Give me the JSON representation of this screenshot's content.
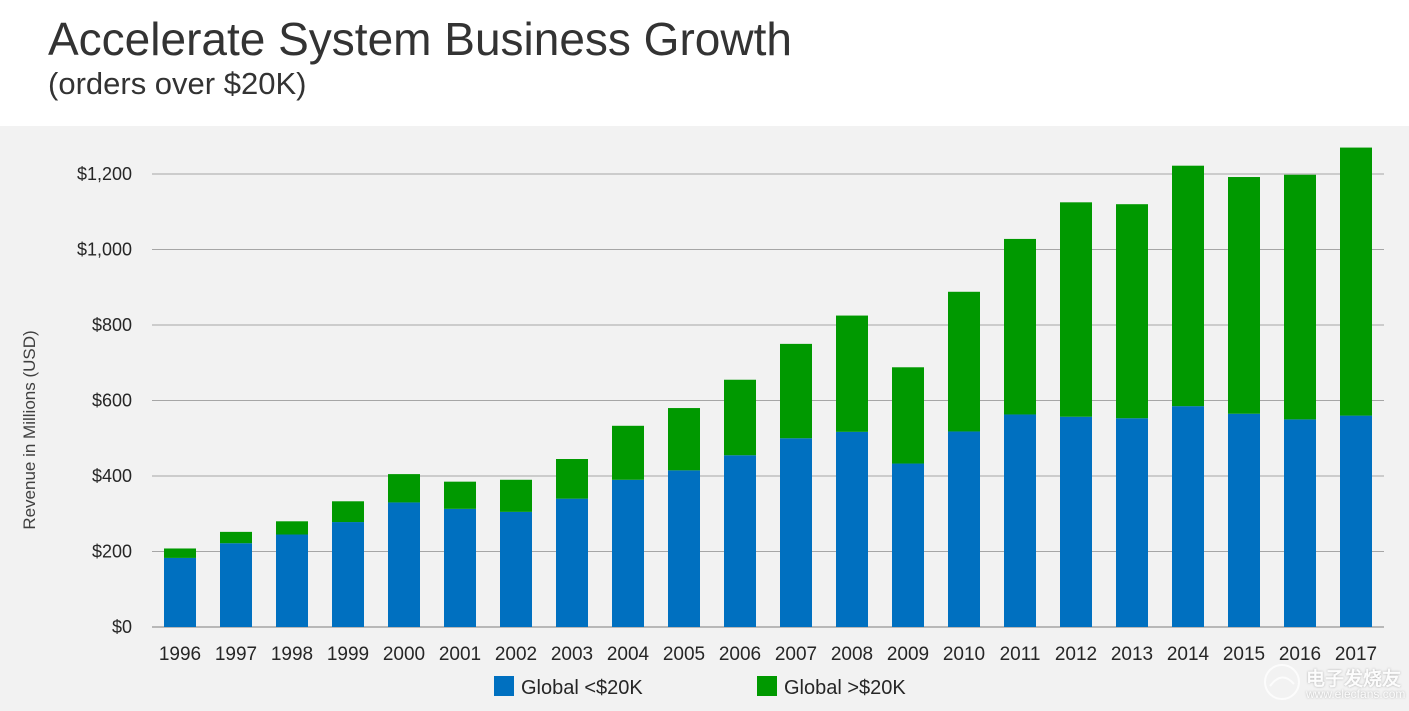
{
  "header": {
    "title": "Accelerate System Business Growth",
    "subtitle": "(orders over $20K)"
  },
  "chart_data": {
    "type": "bar",
    "stacked": true,
    "categories": [
      "1996",
      "1997",
      "1998",
      "1999",
      "2000",
      "2001",
      "2002",
      "2003",
      "2004",
      "2005",
      "2006",
      "2007",
      "2008",
      "2009",
      "2010",
      "2011",
      "2012",
      "2013",
      "2014",
      "2015",
      "2016",
      "2017"
    ],
    "series": [
      {
        "name": "Global <$20K",
        "color": "#0070c0",
        "values": [
          183,
          222,
          245,
          278,
          330,
          313,
          305,
          340,
          390,
          415,
          455,
          500,
          517,
          433,
          518,
          563,
          557,
          553,
          585,
          565,
          550,
          560
        ]
      },
      {
        "name": "Global >$20K",
        "color": "#009900",
        "values": [
          25,
          30,
          35,
          55,
          75,
          72,
          85,
          105,
          143,
          165,
          200,
          250,
          308,
          255,
          370,
          465,
          568,
          567,
          637,
          627,
          648,
          710
        ]
      }
    ],
    "ylabel": "Revenue in Millions (USD)",
    "xlabel": "",
    "ylim": [
      0,
      1300
    ],
    "yticks": [
      0,
      200,
      400,
      600,
      800,
      1000,
      1200
    ],
    "ytick_labels": [
      "$0",
      "$200",
      "$400",
      "$600",
      "$800",
      "$1,000",
      "$1,200"
    ],
    "grid": true,
    "legend_position": "bottom"
  },
  "watermark": {
    "text": "电子发烧友",
    "url": "www.elecfans.com"
  },
  "colors": {
    "panel_bg": "#f2f2f2",
    "grid": "#a6a6a6",
    "text": "#262626"
  }
}
